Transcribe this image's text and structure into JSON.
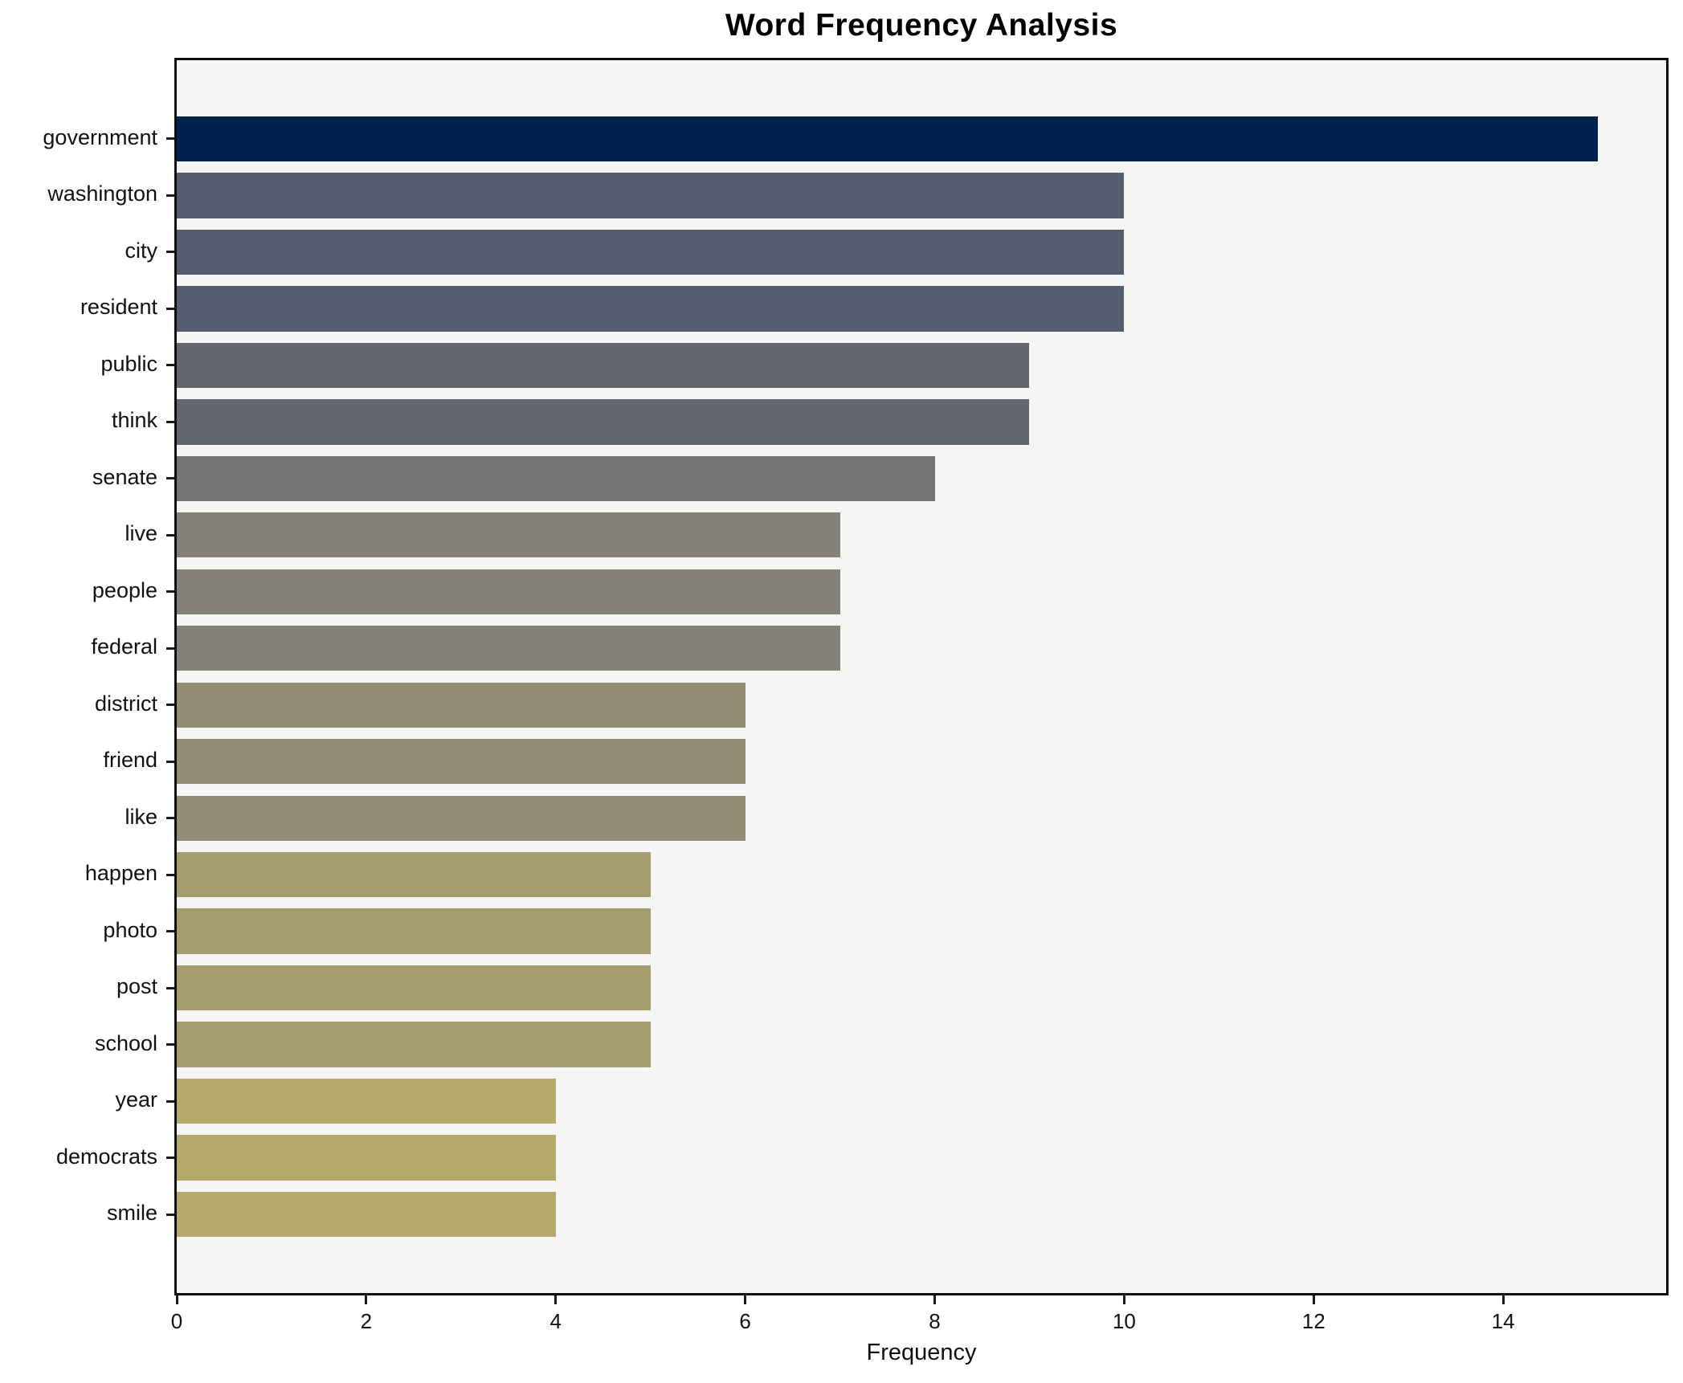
{
  "title": "Word Frequency Analysis",
  "xlabel": "Frequency",
  "chart_data": {
    "type": "bar",
    "orientation": "horizontal",
    "title": "Word Frequency Analysis",
    "xlabel": "Frequency",
    "ylabel": "",
    "categories": [
      "government",
      "washington",
      "city",
      "resident",
      "public",
      "think",
      "senate",
      "live",
      "people",
      "federal",
      "district",
      "friend",
      "like",
      "happen",
      "photo",
      "post",
      "school",
      "year",
      "democrats",
      "smile"
    ],
    "values": [
      15,
      10,
      10,
      10,
      9,
      9,
      8,
      7,
      7,
      7,
      6,
      6,
      6,
      5,
      5,
      5,
      5,
      4,
      4,
      4
    ],
    "bar_colors": [
      "#00224e",
      "#555c6e",
      "#555c6e",
      "#555c6e",
      "#64666f",
      "#64666f",
      "#747476",
      "#84817a",
      "#84817a",
      "#84817a",
      "#948e76",
      "#948e76",
      "#948e76",
      "#a59d70",
      "#a59d70",
      "#a59d70",
      "#a59d70",
      "#b5aa6c",
      "#b5aa6c",
      "#b5aa6c"
    ],
    "xticks": [
      0,
      2,
      4,
      6,
      8,
      10,
      12,
      14
    ],
    "xlim": [
      0,
      15.72
    ],
    "grid": false,
    "legend_position": "none",
    "plot_background": "#f5f5f4",
    "figure_background": "#ffffff",
    "axis_color": "#0e0e0e"
  }
}
